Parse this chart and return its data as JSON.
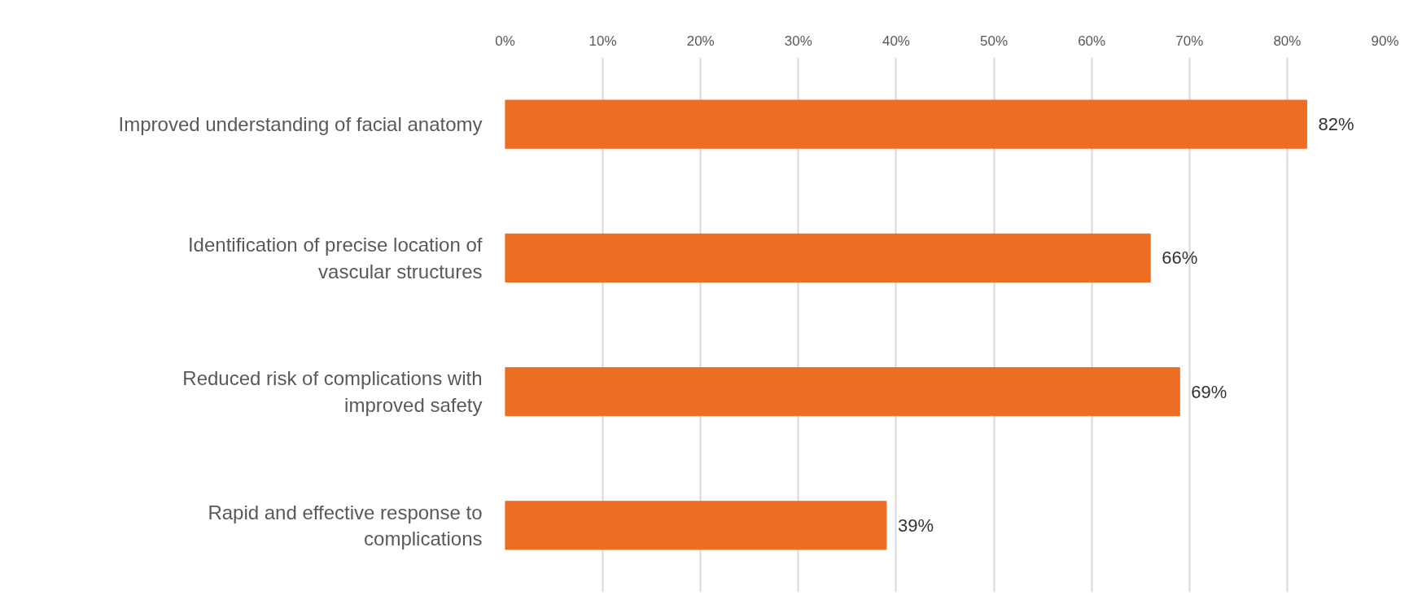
{
  "chart_data": {
    "type": "bar",
    "orientation": "horizontal",
    "categories": [
      "Improved understanding of facial anatomy",
      "Identification of precise location of vascular structures",
      "Reduced risk of complications with improved safety",
      "Rapid and effective response to complications"
    ],
    "values": [
      82,
      66,
      69,
      39
    ],
    "value_labels": [
      "82%",
      "66%",
      "69%",
      "39%"
    ],
    "color": "#ed6d23",
    "xlim": [
      0,
      90
    ],
    "xticks": [
      {
        "value": 0,
        "label": "0%"
      },
      {
        "value": 10,
        "label": "10%"
      },
      {
        "value": 20,
        "label": "20%"
      },
      {
        "value": 30,
        "label": "30%"
      },
      {
        "value": 40,
        "label": "40%"
      },
      {
        "value": 50,
        "label": "50%"
      },
      {
        "value": 60,
        "label": "60%"
      },
      {
        "value": 70,
        "label": "70%"
      },
      {
        "value": 80,
        "label": "80%"
      },
      {
        "value": 90,
        "label": "90%"
      }
    ],
    "grid": "x"
  }
}
